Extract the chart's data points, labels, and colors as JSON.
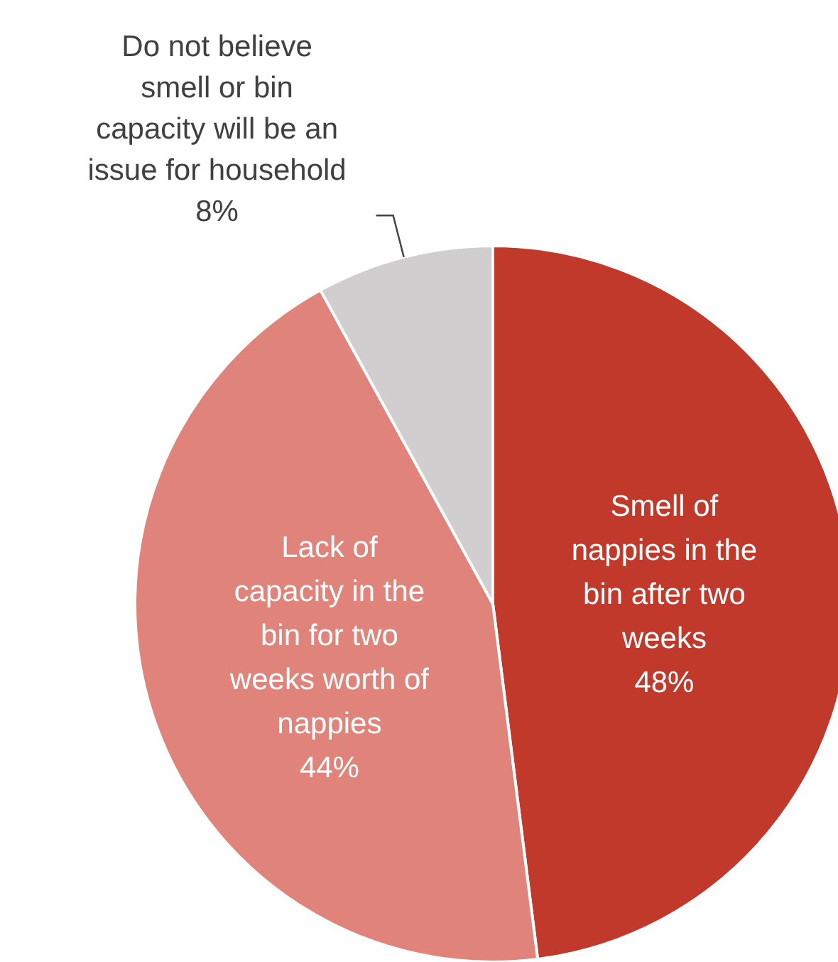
{
  "chart_data": {
    "type": "pie",
    "categories": [
      "Smell of nappies in the bin after two weeks",
      "Lack of capacity in the bin for two weeks worth of nappies",
      "Do not believe smell or bin capacity will be an issue for household"
    ],
    "values": [
      48,
      44,
      8
    ],
    "colors": [
      "#c0392b",
      "#e0837a",
      "#d0cecf"
    ],
    "value_labels": [
      "48%",
      "44%",
      "8%"
    ],
    "legend": false
  }
}
